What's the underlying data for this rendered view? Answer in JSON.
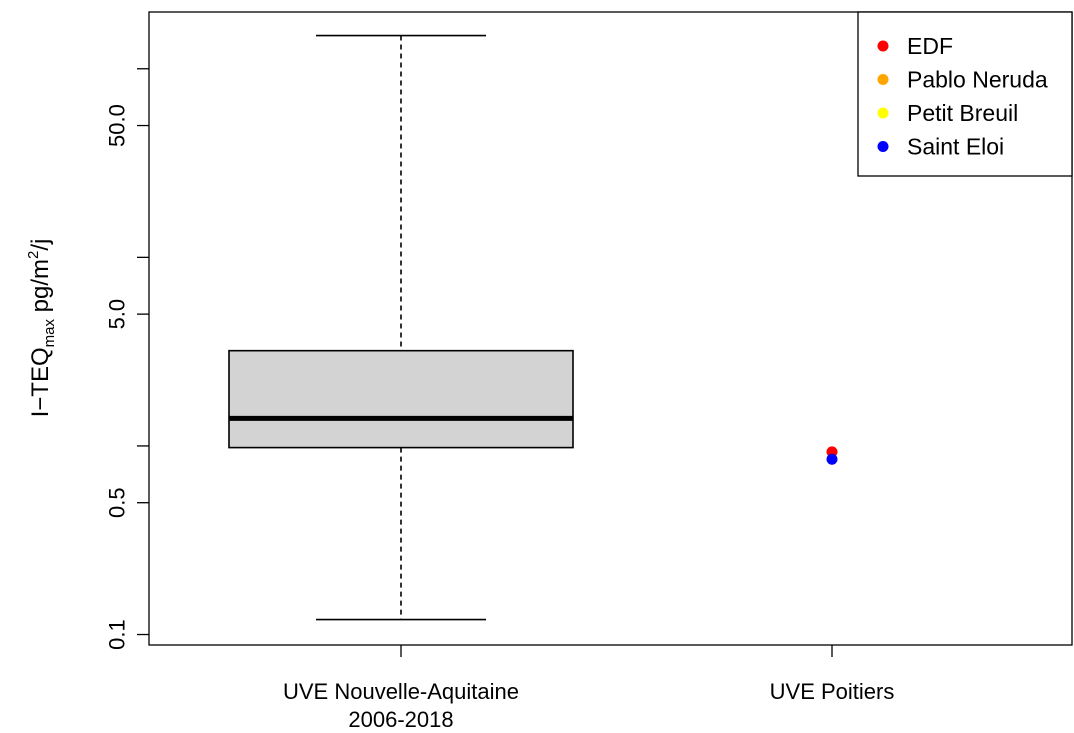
{
  "chart_data": {
    "type": "boxplot",
    "y_scale": "log",
    "ylabel": {
      "main": "I−TEQ",
      "sub": "max",
      "unit": " pg/m",
      "sup": "2",
      "tail": "/j"
    },
    "y_ticks": [
      {
        "value": 0.1,
        "label": "0.1"
      },
      {
        "value": 0.5,
        "label": "0.5"
      },
      {
        "value": 5,
        "label": "5.0"
      },
      {
        "value": 50,
        "label": "50.0"
      }
    ],
    "y_minor_ticks": [
      1,
      10,
      100
    ],
    "ylim": [
      0.088,
      200
    ],
    "categories": [
      {
        "line1": "UVE Nouvelle-Aquitaine",
        "line2": "2006-2018"
      },
      {
        "line1": "UVE Poitiers",
        "line2": ""
      }
    ],
    "box": {
      "category_index": 0,
      "whisker_low": 0.12,
      "q1": 0.98,
      "median": 1.4,
      "q3": 3.2,
      "whisker_high": 150,
      "fill": "#d3d3d3"
    },
    "points": [
      {
        "category_index": 1,
        "series": "EDF",
        "y": 0.93
      },
      {
        "category_index": 1,
        "series": "Saint Eloi",
        "y": 0.85
      }
    ],
    "legend": {
      "position": "top-right",
      "entries": [
        {
          "name": "EDF",
          "color": "#ff0000"
        },
        {
          "name": "Pablo Neruda",
          "color": "#ffa500"
        },
        {
          "name": "Petit Breuil",
          "color": "#ffff00"
        },
        {
          "name": "Saint Eloi",
          "color": "#0000ff"
        }
      ]
    }
  }
}
